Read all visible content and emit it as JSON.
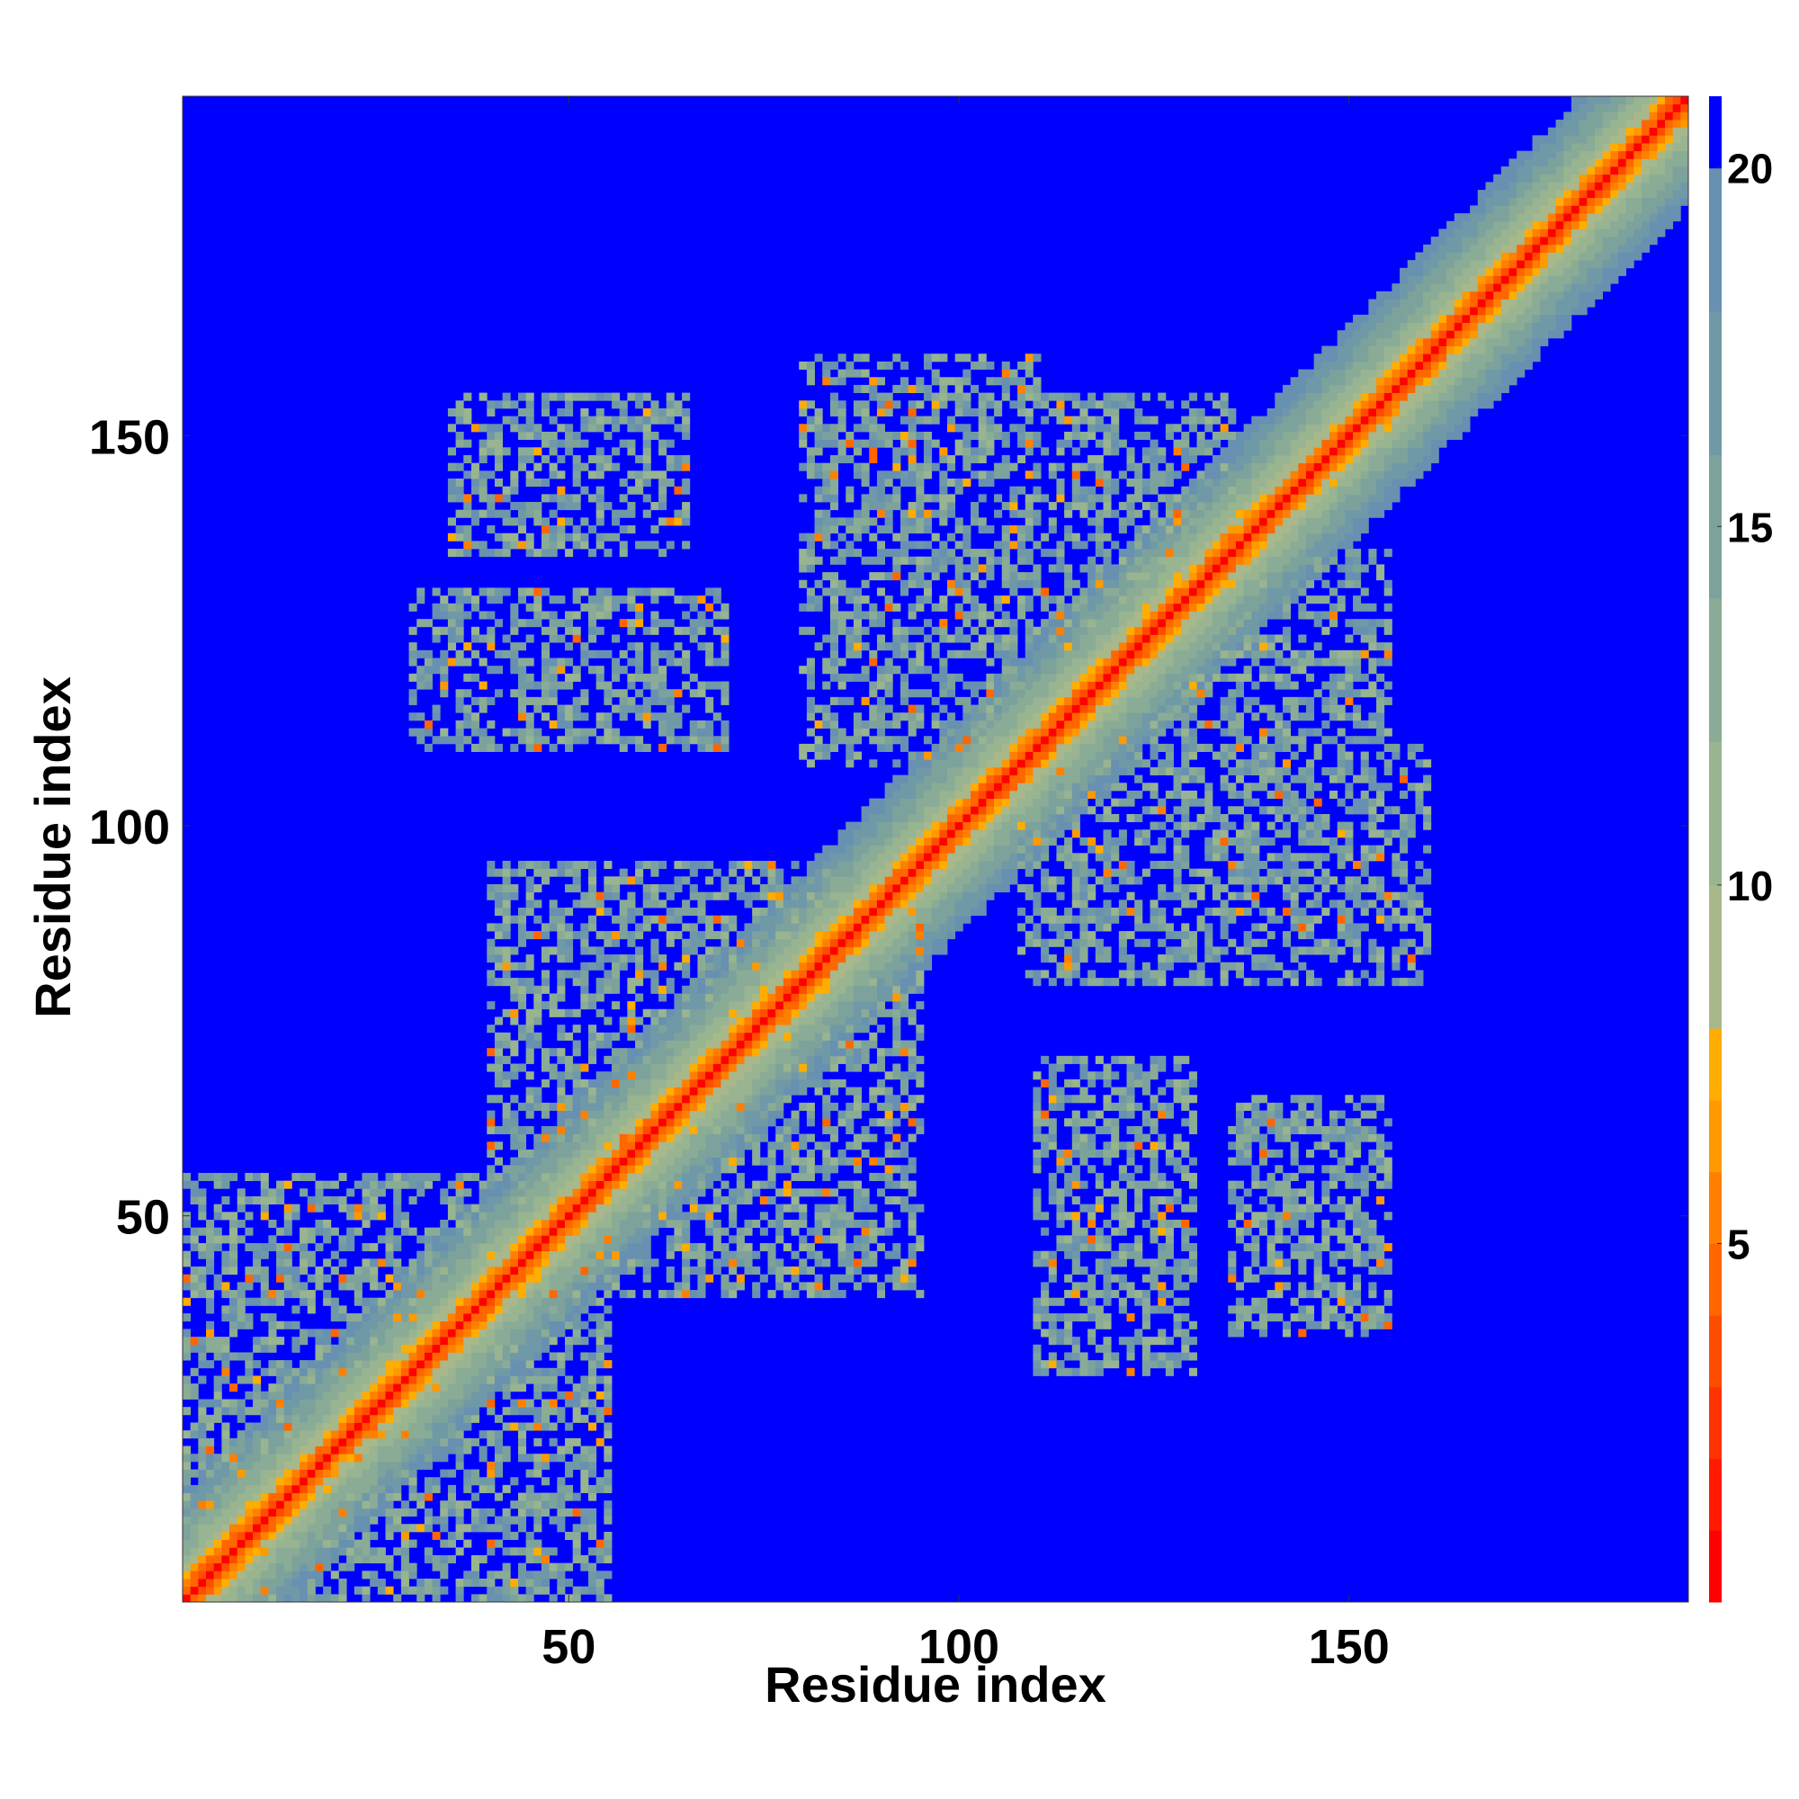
{
  "chart_data": {
    "type": "heatmap",
    "title": "",
    "xlabel": "Residue index",
    "ylabel": "Residue index",
    "n_residues": 193,
    "xlim": [
      0.5,
      193.5
    ],
    "ylim": [
      0.5,
      193.5
    ],
    "xticks": [
      50,
      100,
      150
    ],
    "yticks": [
      50,
      100,
      150
    ],
    "colorbar": {
      "range": [
        0,
        21
      ],
      "ticks": [
        5,
        10,
        15,
        20
      ],
      "levels": [
        {
          "from": 0,
          "to": 1,
          "color": "#ff0000"
        },
        {
          "from": 1,
          "to": 2,
          "color": "#ff1a00"
        },
        {
          "from": 2,
          "to": 3,
          "color": "#ff3300"
        },
        {
          "from": 3,
          "to": 4,
          "color": "#ff4d00"
        },
        {
          "from": 4,
          "to": 5,
          "color": "#ff6600"
        },
        {
          "from": 5,
          "to": 6,
          "color": "#ff8000"
        },
        {
          "from": 6,
          "to": 7,
          "color": "#ff9900"
        },
        {
          "from": 7,
          "to": 8,
          "color": "#ffad00"
        },
        {
          "from": 8,
          "to": 10,
          "color": "#a8b88a"
        },
        {
          "from": 10,
          "to": 12,
          "color": "#98b490"
        },
        {
          "from": 12,
          "to": 14,
          "color": "#8aac96"
        },
        {
          "from": 14,
          "to": 16,
          "color": "#7da29c"
        },
        {
          "from": 16,
          "to": 18,
          "color": "#7099a8"
        },
        {
          "from": 18,
          "to": 20,
          "color": "#6890b0"
        },
        {
          "from": 20,
          "to": 21,
          "color": "#0000ff"
        }
      ]
    },
    "distance_cutoff": 20,
    "background_value": 21,
    "contact_regions": [
      {
        "x": [
          1,
          55
        ],
        "y": [
          1,
          55
        ],
        "note": "N-terminal cluster"
      },
      {
        "x": [
          40,
          90
        ],
        "y": [
          40,
          95
        ],
        "note": "central cluster"
      },
      {
        "x": [
          30,
          70
        ],
        "y": [
          110,
          130
        ]
      },
      {
        "x": [
          85,
          135
        ],
        "y": [
          120,
          155
        ]
      },
      {
        "x": [
          108,
          160
        ],
        "y": [
          80,
          110
        ]
      },
      {
        "x": [
          110,
          130
        ],
        "y": [
          35,
          55
        ]
      },
      {
        "x": [
          135,
          155
        ],
        "y": [
          35,
          65
        ]
      }
    ]
  }
}
